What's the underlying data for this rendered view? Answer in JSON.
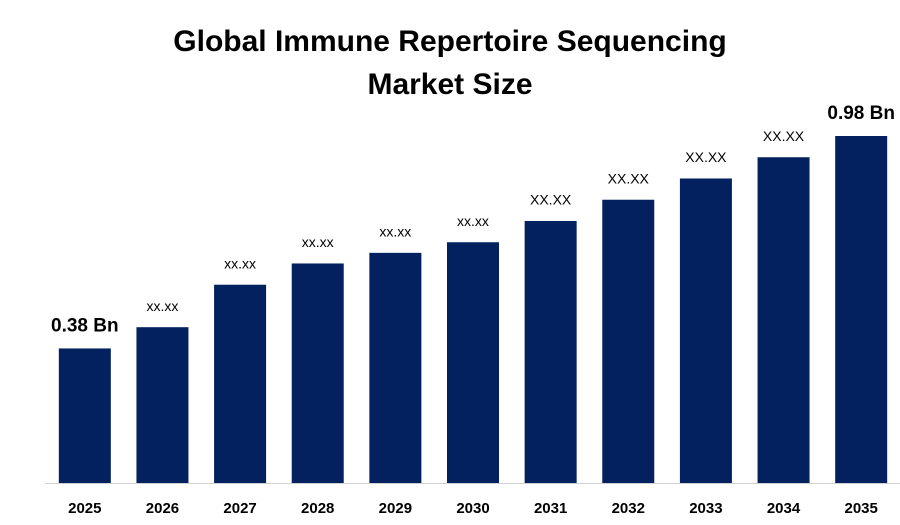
{
  "chart_data": {
    "type": "bar",
    "title": "Global Immune Repertoire Sequencing Market Size",
    "categories": [
      "2025",
      "2026",
      "2027",
      "2028",
      "2029",
      "2030",
      "2031",
      "2032",
      "2033",
      "2034",
      "2035"
    ],
    "values": [
      0.38,
      0.44,
      0.56,
      0.62,
      0.65,
      0.68,
      0.74,
      0.8,
      0.86,
      0.92,
      0.98
    ],
    "value_labels": [
      "0.38 Bn",
      "xx.xx",
      "xx.xx",
      "xx.xx",
      "xx.xx",
      "xx.xx",
      "XX.XX",
      "XX.XX",
      "XX.XX",
      "XX.XX",
      "0.98 Bn"
    ],
    "color": "#03205f"
  }
}
